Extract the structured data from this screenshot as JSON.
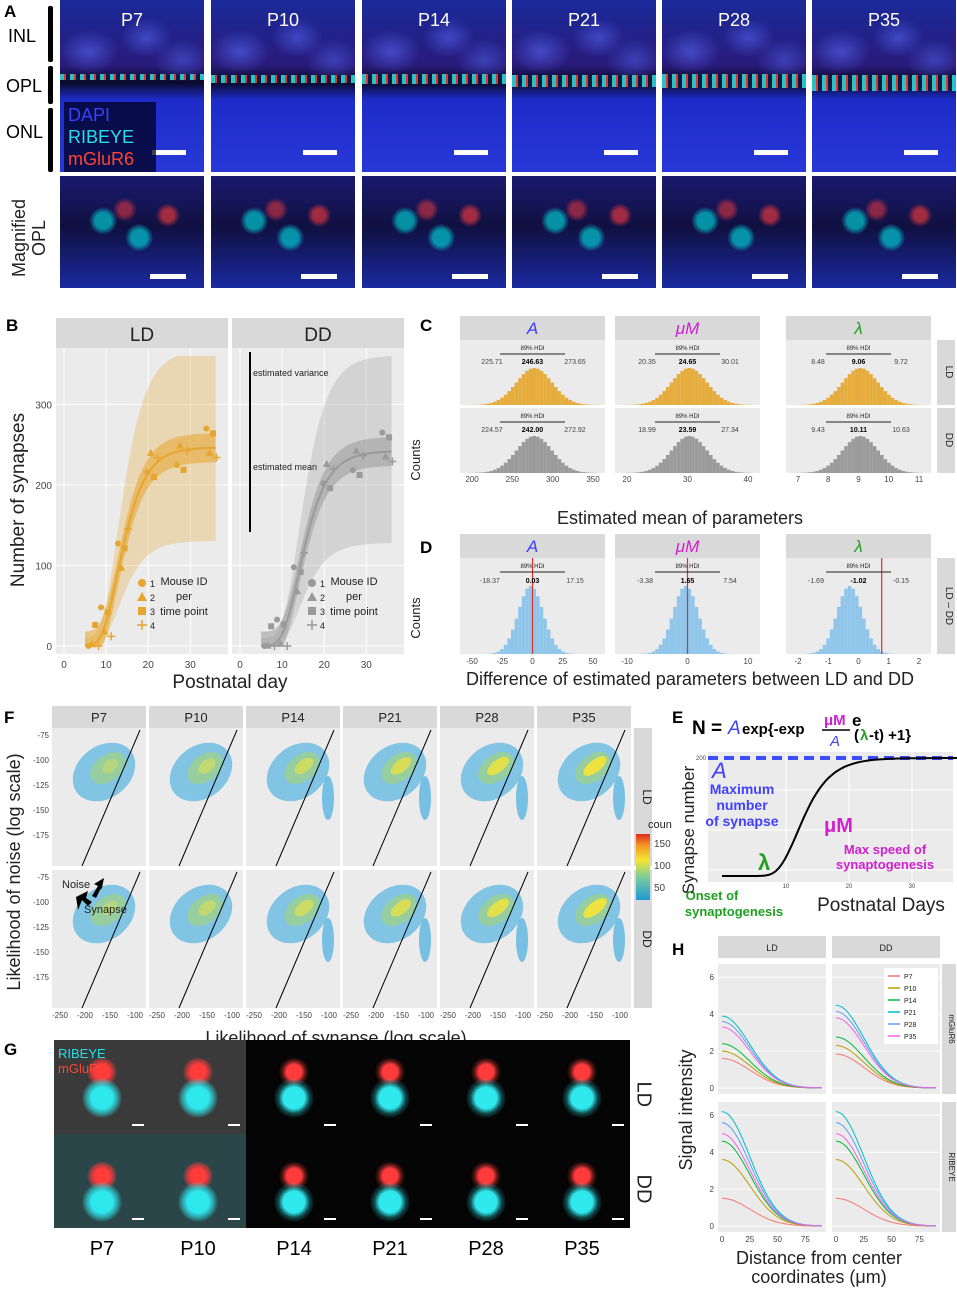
{
  "panels": {
    "A": "A",
    "B": "B",
    "C": "C",
    "D": "D",
    "E": "E",
    "F": "F",
    "G": "G",
    "H": "H"
  },
  "panelA": {
    "timepoints": [
      "P7",
      "P10",
      "P14",
      "P21",
      "P28",
      "P35"
    ],
    "layers": {
      "inl": "INL",
      "opl": "OPL",
      "onl": "ONL"
    },
    "magnified": "Magnified OPL",
    "legend": {
      "dapi": "DAPI",
      "ribeye": "RIBEYE",
      "mglur6": "mGluR6"
    },
    "colors": {
      "dapi": "#3344ff",
      "ribeye": "#22e0e8",
      "mglur6": "#ff4433"
    }
  },
  "panelB": {
    "strips": [
      "LD",
      "DD"
    ],
    "ylabel": "Number of synapses",
    "xlabel": "Postnatal day",
    "yticks": [
      "0",
      "100",
      "200",
      "300"
    ],
    "xticks": [
      "0",
      "10",
      "20",
      "30"
    ],
    "annot_variance": "estimated variance",
    "annot_mean": "estimated mean",
    "legend_title": [
      "Mouse ID",
      "per",
      "time point"
    ],
    "legend_ids": [
      "1",
      "2",
      "3",
      "4"
    ],
    "colors": {
      "LD": "#e6a52e",
      "DD": "#9a9a9a"
    }
  },
  "panelC": {
    "cols": [
      "A",
      "μM",
      "λ"
    ],
    "rows": [
      "LD",
      "DD"
    ],
    "ylabel": "Counts",
    "xlabel": "Estimated mean of parameters",
    "hdi": "89% HDI",
    "stats": [
      [
        "225.71",
        "246.63",
        "273.65"
      ],
      [
        "20.35",
        "24.65",
        "30.01"
      ],
      [
        "8.48",
        "9.06",
        "9.72"
      ],
      [
        "224.57",
        "242.00",
        "272.92"
      ],
      [
        "18.99",
        "23.59",
        "27.34"
      ],
      [
        "9.43",
        "10.11",
        "10.63"
      ]
    ],
    "xticks": [
      [
        "200",
        "250",
        "300",
        "350"
      ],
      [
        "20",
        "30",
        "40"
      ],
      [
        "7",
        "8",
        "9",
        "10",
        "11"
      ]
    ]
  },
  "panelD": {
    "cols": [
      "A",
      "μM",
      "λ"
    ],
    "row": "LD – DD",
    "ylabel": "Counts",
    "xlabel": "Difference of estimated parameters between LD and DD",
    "hdi": "89% HDI",
    "stats": [
      [
        "-18.37",
        "0.03",
        "17.15"
      ],
      [
        "-3.38",
        "1.65",
        "7.54"
      ],
      [
        "-1.69",
        "-1.02",
        "-0.15"
      ]
    ],
    "xticks": [
      [
        "-50",
        "-25",
        "0",
        "25",
        "50"
      ],
      [
        "-10",
        "0",
        "10"
      ],
      [
        "-2",
        "-1",
        "0",
        "1",
        "2"
      ]
    ]
  },
  "panelE": {
    "eq_left": "N = ",
    "eq_a": "A",
    "eq_mid": "exp{-exp",
    "eq_frac_num": "μM",
    "eq_frac_den": "A",
    "eq_e": "e",
    "eq_lam": "λ",
    "eq_tail": " -t) +1}",
    "ylabel": "Synapse number",
    "xlabel": "Postnatal Days",
    "a_label": "A",
    "a_desc": [
      "Maximum",
      "number",
      "of synapse"
    ],
    "mu_label": "μM",
    "mu_desc": [
      "Max speed of",
      "synaptogenesis"
    ],
    "lam_label": "λ",
    "lam_desc": [
      "Onset of",
      "synaptogenesis"
    ],
    "ytick": "200",
    "xticks": [
      "10",
      "20",
      "30"
    ]
  },
  "panelF": {
    "timepoints": [
      "P7",
      "P10",
      "P14",
      "P21",
      "P28",
      "P35"
    ],
    "rows": [
      "LD",
      "DD"
    ],
    "ylabel": "Likelihood of noise (log scale)",
    "xlabel": "Likelihood of synapse (log scale)",
    "yticks": [
      "-75",
      "-100",
      "-125",
      "-150",
      "-175"
    ],
    "xticks": [
      "-250",
      "-200",
      "-150",
      "-100"
    ],
    "noise": "Noise",
    "synapse": "Synapse",
    "count_title": "count",
    "count_ticks": [
      "150",
      "100",
      "50"
    ]
  },
  "panelG": {
    "legend": {
      "ribeye": "RIBEYE",
      "mglur6": "mGluR6"
    },
    "rows": [
      "LD",
      "DD"
    ],
    "timepoints": [
      "P7",
      "P10",
      "P14",
      "P21",
      "P28",
      "P35"
    ]
  },
  "panelH": {
    "strips": [
      "LD",
      "DD"
    ],
    "rowstrips": [
      "mGluR6",
      "RIBEYE"
    ],
    "ylabel": "Signal intensity",
    "xlabel": [
      "Distance from center",
      "coordinates (μm)"
    ],
    "yticks": [
      "0",
      "2",
      "4",
      "6"
    ],
    "xticks": [
      "0",
      "25",
      "50",
      "75"
    ],
    "legend": [
      {
        "name": "P7",
        "color": "#f8766d"
      },
      {
        "name": "P10",
        "color": "#b79f00"
      },
      {
        "name": "P14",
        "color": "#00ba38"
      },
      {
        "name": "P21",
        "color": "#00bfc4"
      },
      {
        "name": "P28",
        "color": "#619cff"
      },
      {
        "name": "P35",
        "color": "#f564e3"
      }
    ]
  }
}
